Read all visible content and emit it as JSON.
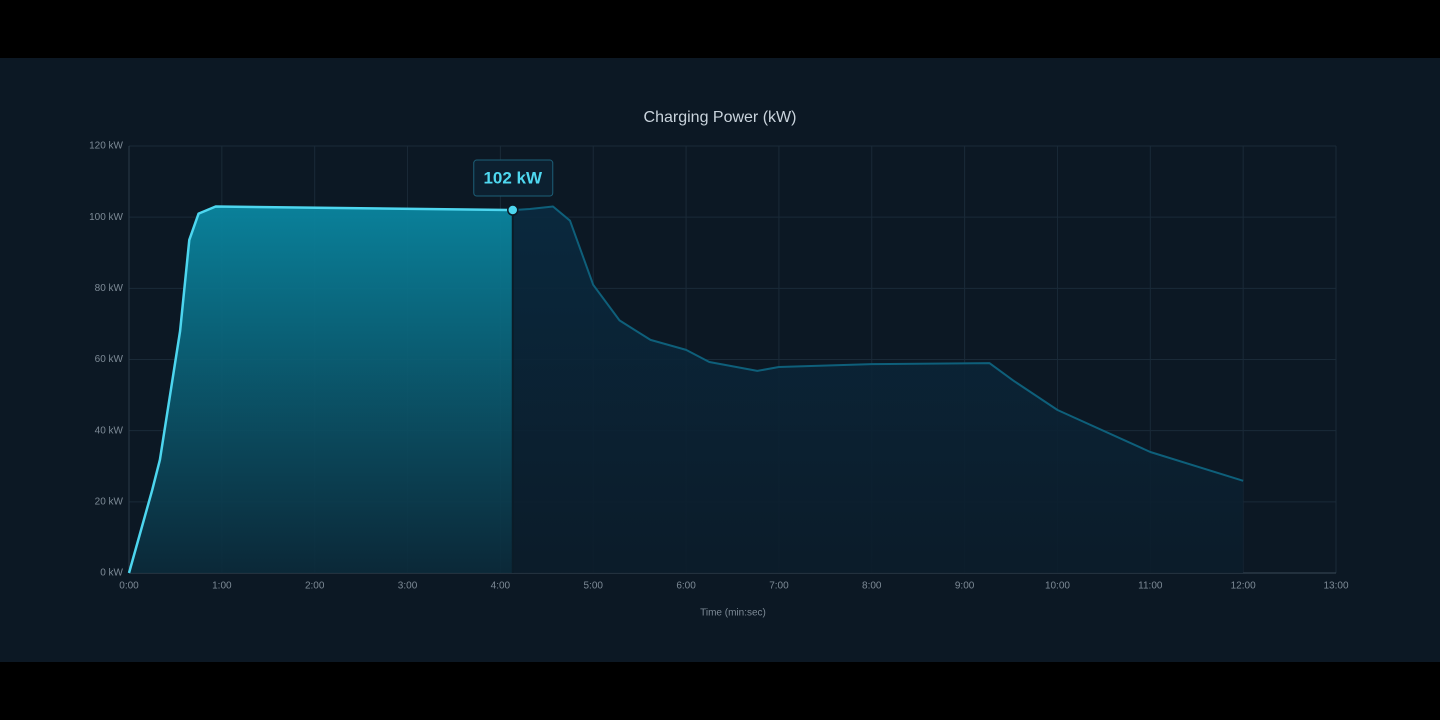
{
  "chart_data": {
    "type": "line",
    "title": "Charging Power (kW)",
    "x_label": "Time (min:sec)",
    "x": [
      0,
      15,
      20,
      33,
      39,
      45,
      56,
      248,
      259,
      274,
      285,
      300,
      317,
      337,
      360,
      375,
      406,
      420,
      480,
      556,
      571,
      600,
      660,
      720
    ],
    "series": [
      {
        "name": "Charging Power",
        "color": "#4dd6ef",
        "values": [
          0,
          23.3,
          31.8,
          68,
          93.6,
          101,
          103,
          102,
          102.3,
          103,
          99,
          81,
          71,
          65.5,
          62.7,
          59.3,
          56.8,
          57.9,
          58.7,
          59,
          54.2,
          45.8,
          34,
          25.9
        ]
      }
    ],
    "annotation": {
      "x": 248,
      "y": 102,
      "label": "102 kW"
    },
    "xlim": [
      0,
      780
    ],
    "xticks": [
      {
        "value": 0,
        "label": "0:00"
      },
      {
        "value": 60,
        "label": "1:00"
      },
      {
        "value": 120,
        "label": "2:00"
      },
      {
        "value": 180,
        "label": "3:00"
      },
      {
        "value": 240,
        "label": "4:00"
      },
      {
        "value": 300,
        "label": "5:00"
      },
      {
        "value": 360,
        "label": "6:00"
      },
      {
        "value": 420,
        "label": "7:00"
      },
      {
        "value": 480,
        "label": "8:00"
      },
      {
        "value": 540,
        "label": "9:00"
      },
      {
        "value": 600,
        "label": "10:00"
      },
      {
        "value": 660,
        "label": "11:00"
      },
      {
        "value": 720,
        "label": "12:00"
      },
      {
        "value": 780,
        "label": "13:00"
      }
    ],
    "ylim": [
      0,
      120
    ],
    "yticks": [
      {
        "value": 0,
        "label": "0 kW"
      },
      {
        "value": 20,
        "label": "20 kW"
      },
      {
        "value": 40,
        "label": "40 kW"
      },
      {
        "value": 60,
        "label": "60 kW"
      },
      {
        "value": 80,
        "label": "80 kW"
      },
      {
        "value": 100,
        "label": "100 kW"
      },
      {
        "value": 120,
        "label": "120 kW"
      }
    ],
    "grid": true
  }
}
